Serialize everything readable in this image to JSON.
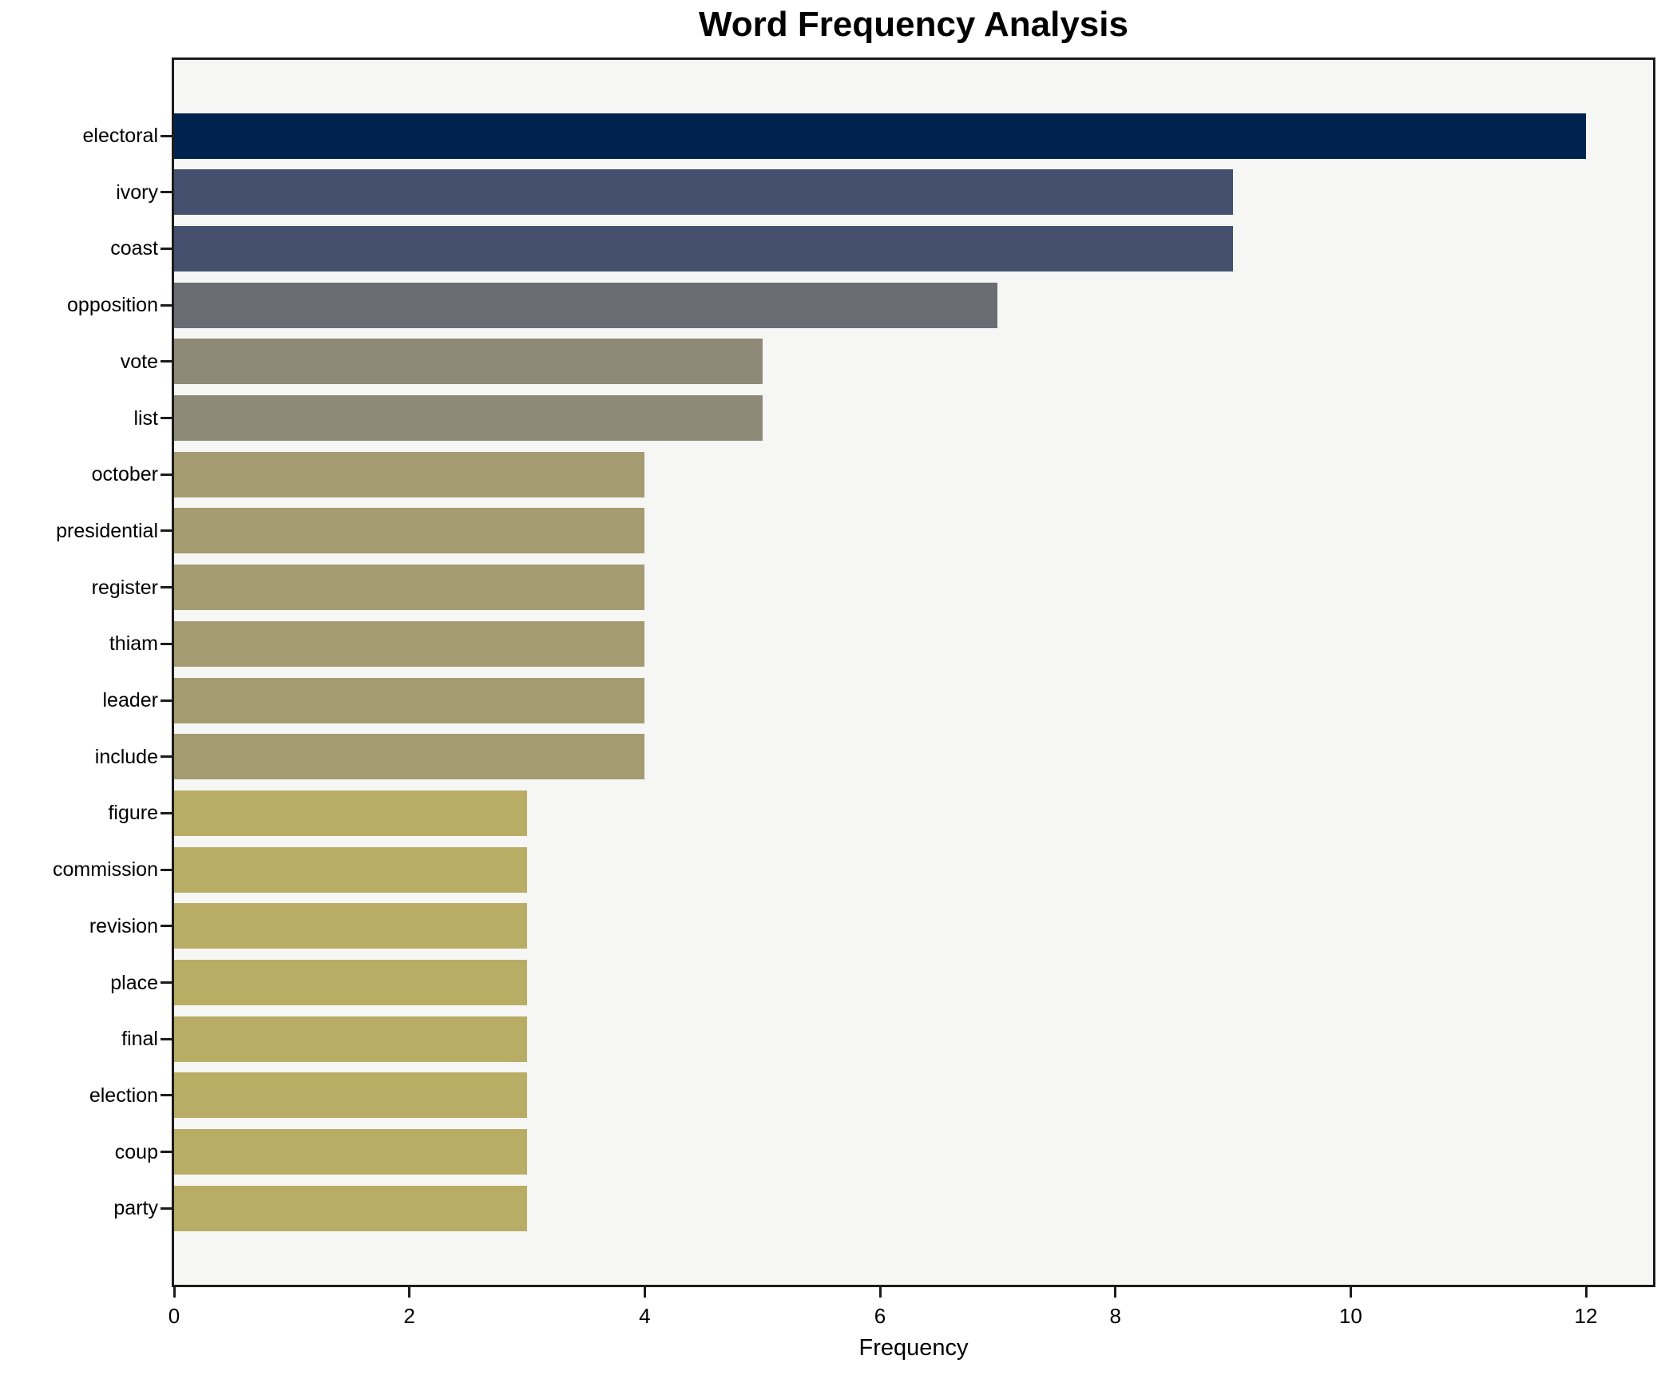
{
  "chart_data": {
    "type": "bar",
    "orientation": "horizontal",
    "title": "Word Frequency Analysis",
    "xlabel": "Frequency",
    "ylabel": "",
    "categories": [
      "electoral",
      "ivory",
      "coast",
      "opposition",
      "vote",
      "list",
      "october",
      "presidential",
      "register",
      "thiam",
      "leader",
      "include",
      "figure",
      "commission",
      "revision",
      "place",
      "final",
      "election",
      "coup",
      "party"
    ],
    "values": [
      12,
      9,
      9,
      7,
      5,
      5,
      4,
      4,
      4,
      4,
      4,
      4,
      3,
      3,
      3,
      3,
      3,
      3,
      3,
      3
    ],
    "bar_colors": [
      "#00234e",
      "#45506f",
      "#45506f",
      "#696c72",
      "#8f8a77",
      "#8f8a77",
      "#a49b71",
      "#a49b71",
      "#a49b71",
      "#a49b71",
      "#a49b71",
      "#a49b71",
      "#b9ad66",
      "#b9ad66",
      "#b9ad66",
      "#b9ad66",
      "#b9ad66",
      "#b9ad66",
      "#b9ad66",
      "#b9ad66"
    ],
    "xticks": [
      0,
      2,
      4,
      6,
      8,
      10,
      12
    ],
    "xlim": [
      0,
      12.57
    ],
    "grid": false,
    "legend": null,
    "plot_background": "#f6f6f5",
    "figure_background": "#ffffff",
    "spine_color": "#1c1c1c",
    "text_color": "#000000"
  }
}
